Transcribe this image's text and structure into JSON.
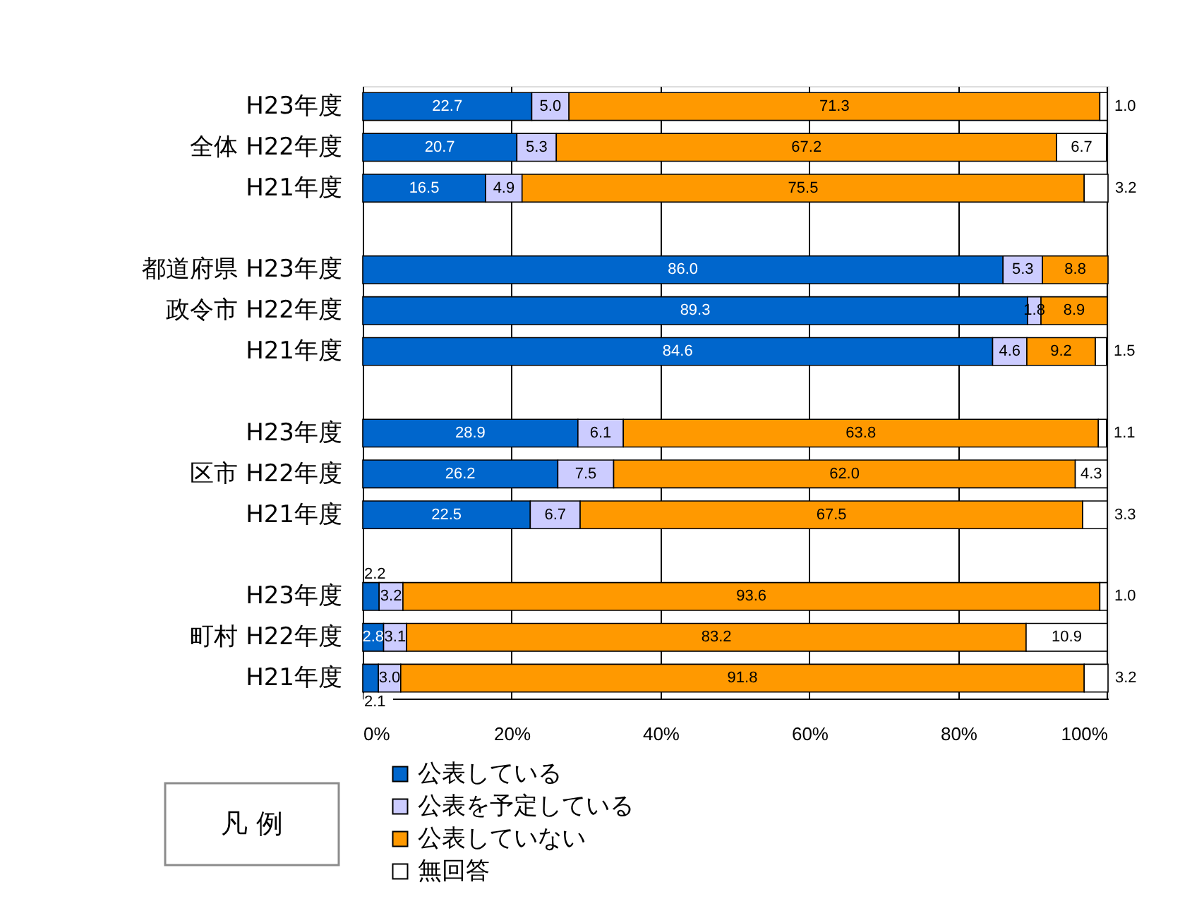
{
  "chart_data": {
    "type": "bar",
    "orientation": "horizontal",
    "stacked": true,
    "categories": [
      "H23年度",
      "全体 H22年度",
      "H21年度",
      null,
      "都道府県 H23年度",
      "政令市 H22年度",
      "H21年度",
      null,
      "H23年度",
      "区市 H22年度",
      "H21年度",
      null,
      "H23年度",
      "町村 H22年度",
      "H21年度"
    ],
    "series": [
      {
        "name": "公表している",
        "color": "#0066cc",
        "values": [
          22.7,
          20.7,
          16.5,
          null,
          86.0,
          89.3,
          84.6,
          null,
          28.9,
          26.2,
          22.5,
          null,
          2.2,
          2.8,
          2.1
        ],
        "value_labels": [
          "22.7",
          "20.7",
          "16.5",
          null,
          "86.0",
          "89.3",
          "84.6",
          null,
          "28.9",
          "26.2",
          "22.5",
          null,
          "2.2",
          "2.8",
          "2.1"
        ]
      },
      {
        "name": "公表を予定している",
        "color": "#ccccff",
        "values": [
          5.0,
          5.3,
          4.9,
          null,
          5.3,
          1.8,
          4.6,
          null,
          6.1,
          7.5,
          6.7,
          null,
          3.2,
          3.1,
          3.0
        ],
        "value_labels": [
          "5.0",
          "5.3",
          "4.9",
          null,
          "5.3",
          "1.8",
          "4.6",
          null,
          "6.1",
          "7.5",
          "6.7",
          null,
          "3.2",
          "3.1",
          "3.0"
        ]
      },
      {
        "name": "公表していない",
        "color": "#ff9900",
        "values": [
          71.3,
          67.2,
          75.5,
          null,
          8.8,
          8.9,
          9.2,
          null,
          63.8,
          62.0,
          67.5,
          null,
          93.6,
          83.2,
          91.8
        ],
        "value_labels": [
          "71.3",
          "67.2",
          "75.5",
          null,
          "8.8",
          "8.9",
          "9.2",
          null,
          "63.8",
          "62.0",
          "67.5",
          null,
          "93.6",
          "83.2",
          "91.8"
        ]
      },
      {
        "name": "無回答",
        "color": "#ffffff",
        "values": [
          1.0,
          6.7,
          3.2,
          null,
          null,
          null,
          1.5,
          null,
          1.1,
          4.3,
          3.3,
          null,
          1.0,
          10.9,
          3.2
        ],
        "value_labels": [
          "1.0",
          "6.7",
          "3.2",
          null,
          null,
          null,
          "1.5",
          null,
          "1.1",
          "4.3",
          "3.3",
          null,
          "1.0",
          "10.9",
          "3.2"
        ]
      }
    ],
    "xlim": [
      0,
      100.1
    ],
    "xticks": [
      {
        "value": 0,
        "label": "0%"
      },
      {
        "value": 20,
        "label": "20%"
      },
      {
        "value": 40,
        "label": "40%"
      },
      {
        "value": 60,
        "label": "60%"
      },
      {
        "value": 80,
        "label": "80%"
      },
      {
        "value": 100,
        "label": "100%"
      }
    ],
    "grid": "x",
    "legend": "bottom left",
    "legend_title": "凡 例"
  }
}
